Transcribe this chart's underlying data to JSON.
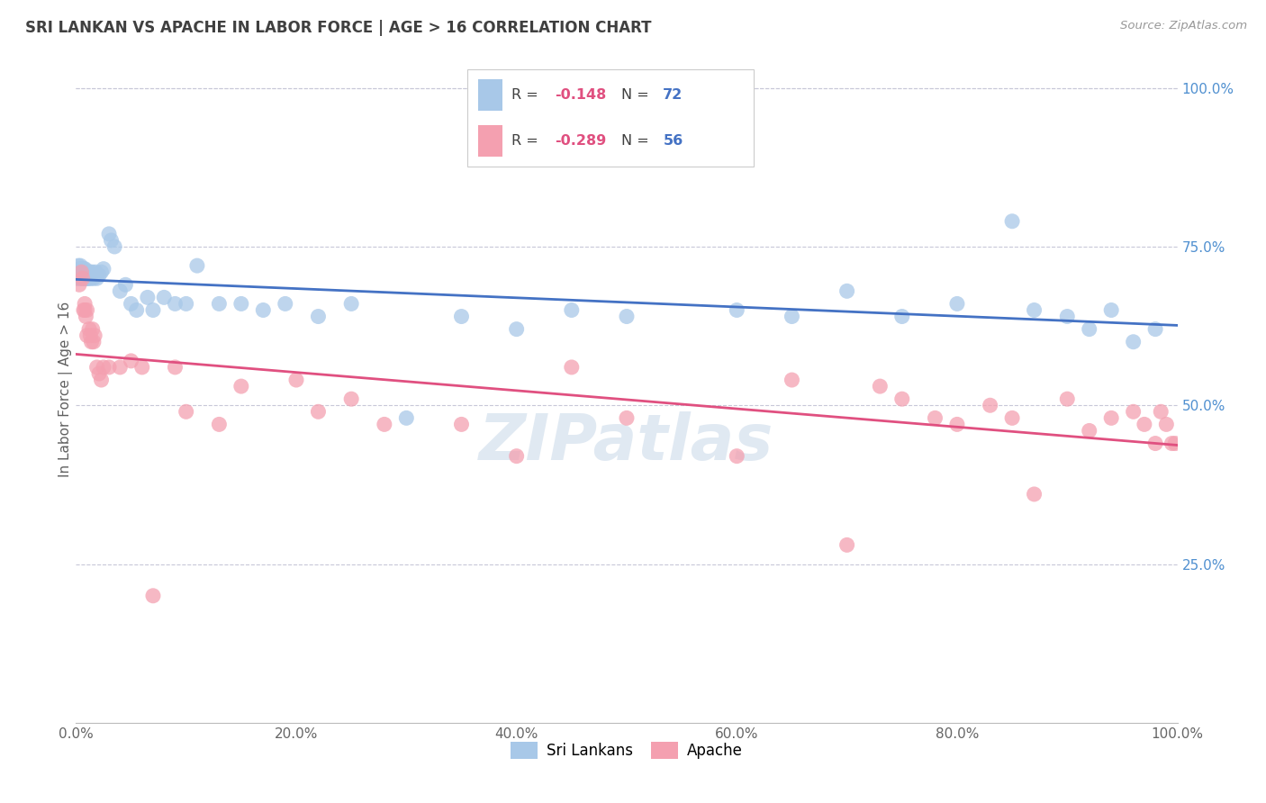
{
  "title": "SRI LANKAN VS APACHE IN LABOR FORCE | AGE > 16 CORRELATION CHART",
  "source": "Source: ZipAtlas.com",
  "ylabel": "In Labor Force | Age > 16",
  "watermark": "ZIPatlas",
  "sri_lankan_R": -0.148,
  "sri_lankan_N": 72,
  "apache_R": -0.289,
  "apache_N": 56,
  "sri_lankan_color": "#a8c8e8",
  "apache_color": "#f4a0b0",
  "trendline_sri_lankan_color": "#4472c4",
  "trendline_apache_color": "#e05080",
  "background_color": "#ffffff",
  "grid_color": "#c8c8d8",
  "title_color": "#404040",
  "axis_label_color": "#606060",
  "right_axis_color": "#5090d0",
  "legend_R_color": "#e05080",
  "legend_N_color": "#4472c4",
  "legend_text_color": "#404040",
  "xlim": [
    0.0,
    1.0
  ],
  "ylim": [
    0.0,
    1.05
  ],
  "x_ticks": [
    0.0,
    0.2,
    0.4,
    0.6,
    0.8,
    1.0
  ],
  "y_ticks_right": [
    0.25,
    0.5,
    0.75,
    1.0
  ],
  "sri_lankans_x": [
    0.001,
    0.002,
    0.002,
    0.003,
    0.003,
    0.003,
    0.004,
    0.004,
    0.005,
    0.005,
    0.005,
    0.006,
    0.006,
    0.006,
    0.007,
    0.007,
    0.007,
    0.008,
    0.008,
    0.008,
    0.009,
    0.009,
    0.01,
    0.01,
    0.011,
    0.011,
    0.012,
    0.013,
    0.014,
    0.015,
    0.016,
    0.018,
    0.019,
    0.021,
    0.023,
    0.025,
    0.03,
    0.032,
    0.035,
    0.04,
    0.045,
    0.05,
    0.055,
    0.065,
    0.07,
    0.08,
    0.09,
    0.1,
    0.11,
    0.13,
    0.15,
    0.17,
    0.19,
    0.22,
    0.25,
    0.3,
    0.35,
    0.4,
    0.45,
    0.5,
    0.6,
    0.65,
    0.7,
    0.75,
    0.8,
    0.85,
    0.87,
    0.9,
    0.92,
    0.94,
    0.96,
    0.98
  ],
  "sri_lankans_y": [
    0.7,
    0.71,
    0.72,
    0.7,
    0.71,
    0.715,
    0.71,
    0.72,
    0.7,
    0.71,
    0.715,
    0.7,
    0.708,
    0.715,
    0.7,
    0.705,
    0.715,
    0.7,
    0.708,
    0.715,
    0.7,
    0.712,
    0.7,
    0.71,
    0.7,
    0.71,
    0.7,
    0.71,
    0.7,
    0.71,
    0.7,
    0.71,
    0.7,
    0.705,
    0.71,
    0.715,
    0.77,
    0.76,
    0.75,
    0.68,
    0.69,
    0.66,
    0.65,
    0.67,
    0.65,
    0.67,
    0.66,
    0.66,
    0.72,
    0.66,
    0.66,
    0.65,
    0.66,
    0.64,
    0.66,
    0.48,
    0.64,
    0.62,
    0.65,
    0.64,
    0.65,
    0.64,
    0.68,
    0.64,
    0.66,
    0.79,
    0.65,
    0.64,
    0.62,
    0.65,
    0.6,
    0.62
  ],
  "apache_x": [
    0.003,
    0.005,
    0.006,
    0.007,
    0.008,
    0.008,
    0.009,
    0.01,
    0.01,
    0.012,
    0.013,
    0.014,
    0.015,
    0.016,
    0.017,
    0.019,
    0.021,
    0.023,
    0.025,
    0.03,
    0.04,
    0.05,
    0.06,
    0.07,
    0.09,
    0.1,
    0.13,
    0.15,
    0.2,
    0.22,
    0.25,
    0.28,
    0.35,
    0.4,
    0.45,
    0.5,
    0.6,
    0.65,
    0.7,
    0.73,
    0.75,
    0.78,
    0.8,
    0.83,
    0.85,
    0.87,
    0.9,
    0.92,
    0.94,
    0.96,
    0.97,
    0.98,
    0.985,
    0.99,
    0.995,
    0.998
  ],
  "apache_y": [
    0.69,
    0.71,
    0.7,
    0.65,
    0.65,
    0.66,
    0.64,
    0.61,
    0.65,
    0.62,
    0.61,
    0.6,
    0.62,
    0.6,
    0.61,
    0.56,
    0.55,
    0.54,
    0.56,
    0.56,
    0.56,
    0.57,
    0.56,
    0.2,
    0.56,
    0.49,
    0.47,
    0.53,
    0.54,
    0.49,
    0.51,
    0.47,
    0.47,
    0.42,
    0.56,
    0.48,
    0.42,
    0.54,
    0.28,
    0.53,
    0.51,
    0.48,
    0.47,
    0.5,
    0.48,
    0.36,
    0.51,
    0.46,
    0.48,
    0.49,
    0.47,
    0.44,
    0.49,
    0.47,
    0.44,
    0.44
  ]
}
